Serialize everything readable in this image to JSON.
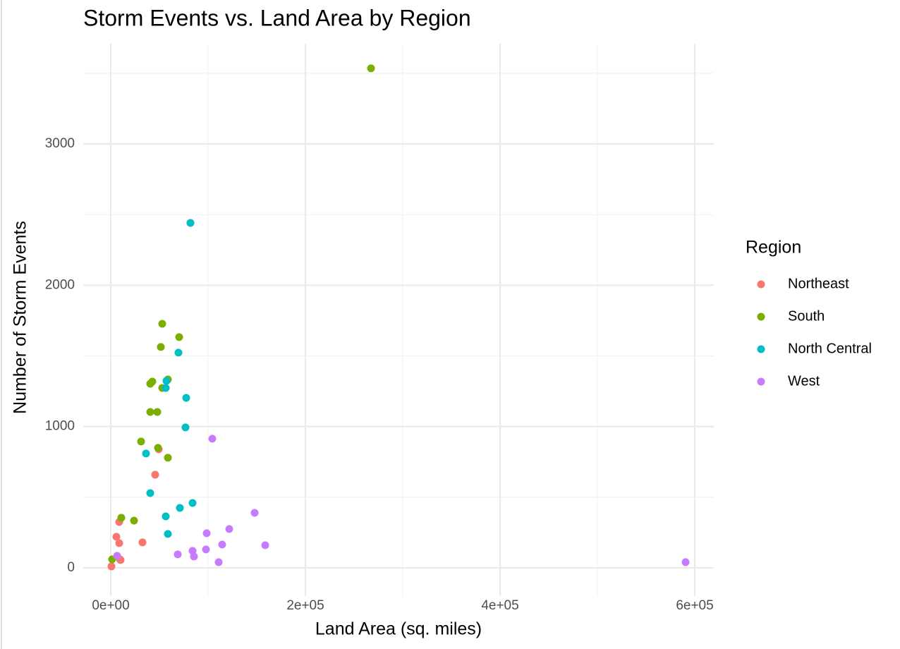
{
  "chart_data": {
    "type": "scatter",
    "title": "Storm Events vs. Land Area by Region",
    "x_label": "Land Area (sq. miles)",
    "y_label": "Number of Storm Events",
    "legend_title": "Region",
    "legend_position": "right",
    "grid": true,
    "xlim": [
      -28261,
      619565
    ],
    "ylim": [
      -200,
      3709
    ],
    "xticks": [
      {
        "value": 0,
        "label": "0e+00"
      },
      {
        "value": 200000,
        "label": "2e+05"
      },
      {
        "value": 400000,
        "label": "4e+05"
      },
      {
        "value": 600000,
        "label": "6e+05"
      }
    ],
    "yticks": [
      0,
      1000,
      2000,
      3000
    ],
    "xminor": [
      100000,
      300000,
      500000
    ],
    "yminor": [
      500,
      1500,
      2500,
      3500
    ],
    "series": [
      {
        "name": "Northeast",
        "color": "#F8766D",
        "x": [
          725,
          5797,
          8696,
          8696,
          9420,
          10145,
          32609,
          45652,
          49275
        ],
        "y": [
          10,
          220,
          325,
          175,
          60,
          55,
          180,
          659,
          839
        ]
      },
      {
        "name": "South",
        "color": "#7CAE00",
        "x": [
          267391,
          52899,
          70290,
          51449,
          58696,
          40580,
          42754,
          52899,
          40580,
          47826,
          31159,
          48551,
          58696,
          10870,
          23913,
          1449
        ],
        "y": [
          3535,
          1727,
          1633,
          1563,
          1333,
          1303,
          1318,
          1273,
          1103,
          1103,
          894,
          849,
          779,
          354,
          334,
          60
        ]
      },
      {
        "name": "North Central",
        "color": "#00BFC4",
        "x": [
          81884,
          69565,
          57246,
          56522,
          77536,
          76812,
          36232,
          40580,
          71014,
          84058,
          56522,
          58696
        ],
        "y": [
          2441,
          1523,
          1323,
          1273,
          1203,
          994,
          809,
          529,
          424,
          459,
          364,
          240
        ]
      },
      {
        "name": "West",
        "color": "#C77CFF",
        "x": [
          104348,
          147826,
          121739,
          98551,
          114493,
          158696,
          97826,
          84058,
          68841,
          85507,
          110870,
          590580,
          6522
        ],
        "y": [
          914,
          389,
          275,
          245,
          165,
          160,
          130,
          120,
          95,
          80,
          40,
          40,
          85
        ]
      }
    ]
  }
}
